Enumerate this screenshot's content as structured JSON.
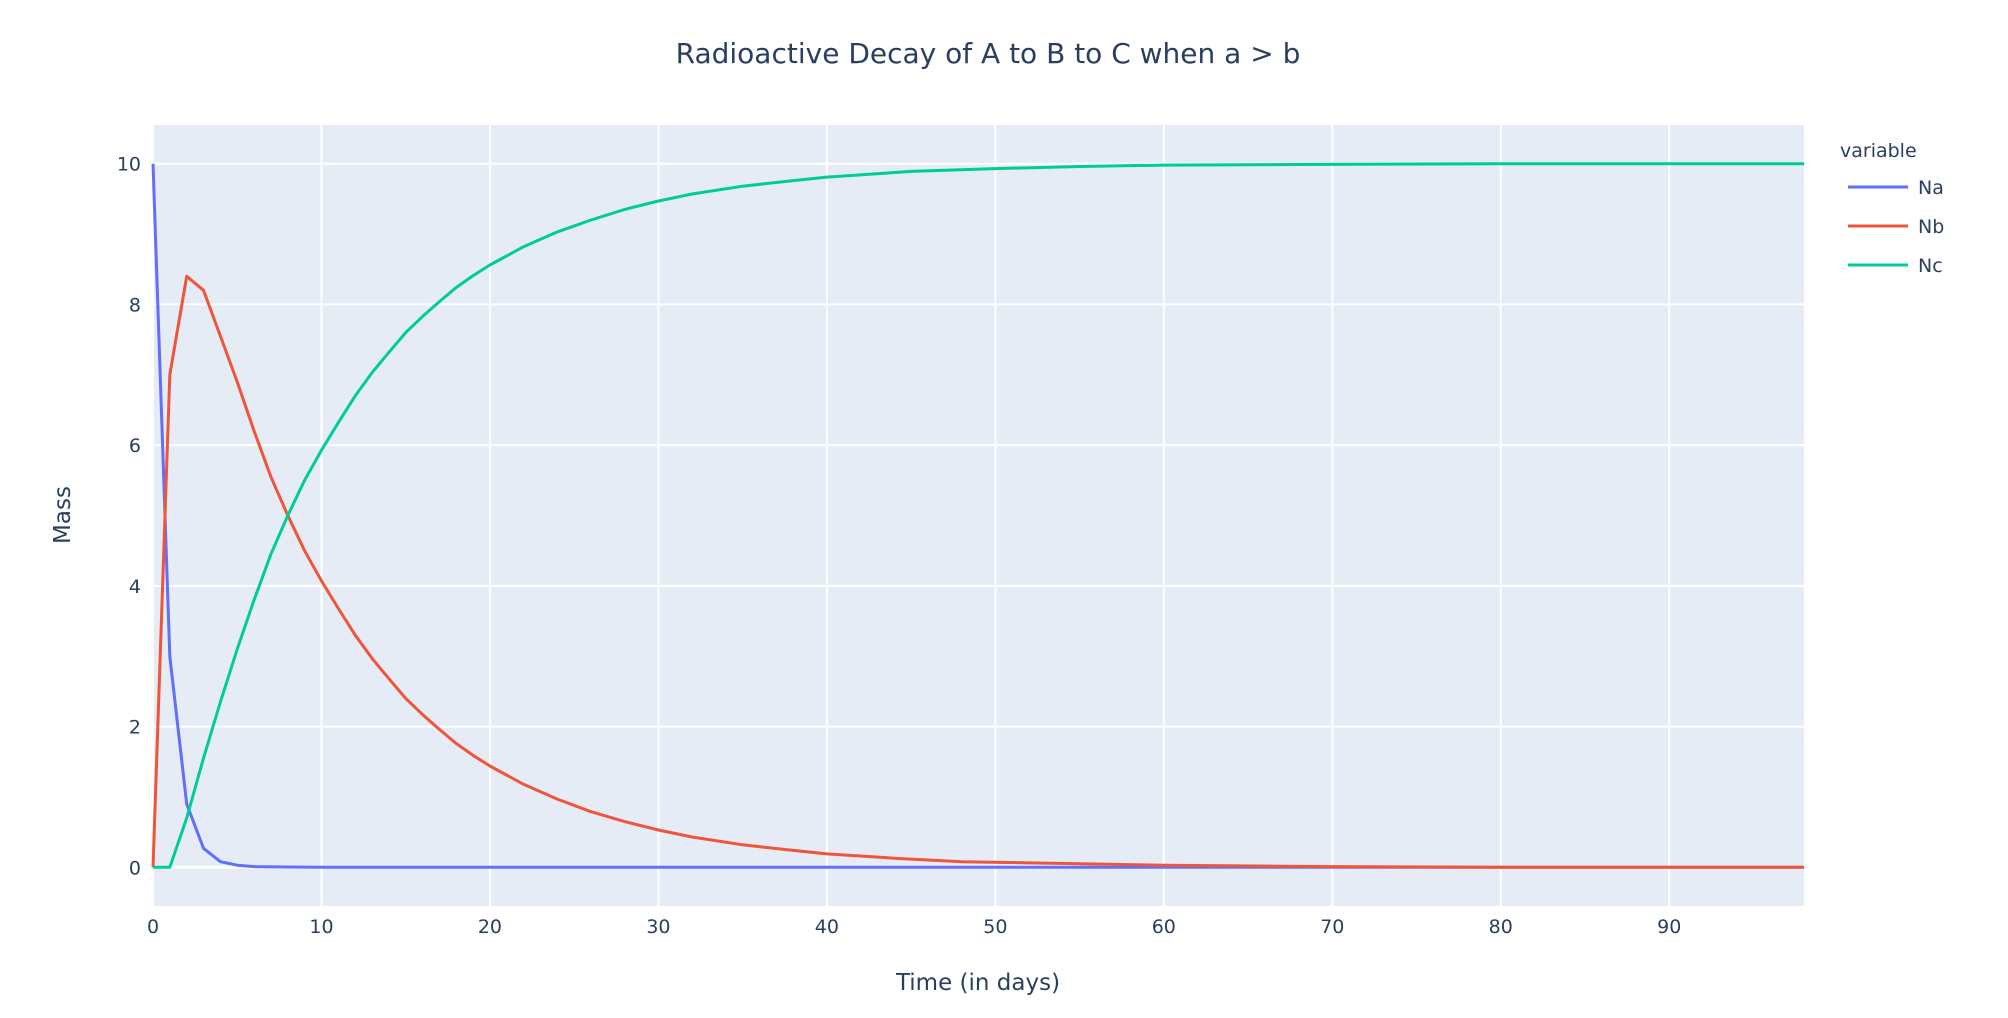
{
  "chart_data": {
    "type": "line",
    "title": "Radioactive Decay of A to B to C when a > b",
    "xlabel": "Time (in days)",
    "ylabel": "Mass",
    "xlim": [
      0,
      98
    ],
    "ylim": [
      -0.55,
      10.55
    ],
    "x_ticks": [
      0,
      10,
      20,
      30,
      40,
      50,
      60,
      70,
      80,
      90
    ],
    "y_ticks": [
      0,
      2,
      4,
      6,
      8,
      10
    ],
    "grid": true,
    "legend": {
      "title": "variable",
      "placement": "top-right"
    },
    "plot_bg": "#e5ecf6",
    "series": [
      {
        "name": "Na",
        "color": "#636efa",
        "x": [
          0,
          1,
          2,
          3,
          4,
          5,
          6,
          8,
          10,
          15,
          20,
          30,
          40,
          50,
          60,
          70,
          80,
          90,
          98
        ],
        "y": [
          10,
          3.0,
          0.9,
          0.27,
          0.08,
          0.03,
          0.01,
          0.005,
          0.0,
          0.0,
          0.0,
          0.0,
          0.0,
          0.0,
          0.0,
          0.0,
          0.0,
          0.0,
          0.0
        ]
      },
      {
        "name": "Nb",
        "color": "#ef553b",
        "x": [
          0,
          1,
          2,
          3,
          4,
          5,
          6,
          7,
          8,
          9,
          10,
          11,
          12,
          13,
          14,
          15,
          16,
          17,
          18,
          19,
          20,
          22,
          24,
          26,
          28,
          30,
          32,
          35,
          38,
          40,
          44,
          48,
          55,
          60,
          70,
          80,
          90,
          98
        ],
        "y": [
          0,
          7.0,
          8.4,
          8.2,
          7.55,
          6.9,
          6.2,
          5.55,
          5.0,
          4.5,
          4.07,
          3.68,
          3.3,
          2.97,
          2.68,
          2.4,
          2.17,
          1.96,
          1.76,
          1.59,
          1.44,
          1.18,
          0.97,
          0.79,
          0.65,
          0.53,
          0.43,
          0.32,
          0.24,
          0.19,
          0.13,
          0.08,
          0.05,
          0.03,
          0.01,
          0.0,
          0.0,
          0.0
        ]
      },
      {
        "name": "Nc",
        "color": "#00cc96",
        "x": [
          0,
          1,
          2,
          3,
          4,
          5,
          6,
          7,
          8,
          9,
          10,
          11,
          12,
          13,
          14,
          15,
          16,
          17,
          18,
          19,
          20,
          22,
          24,
          26,
          28,
          30,
          32,
          35,
          38,
          40,
          45,
          50,
          55,
          60,
          70,
          80,
          90,
          98
        ],
        "y": [
          0,
          0.0,
          0.7,
          1.55,
          2.35,
          3.1,
          3.8,
          4.45,
          5.0,
          5.5,
          5.93,
          6.32,
          6.7,
          7.03,
          7.32,
          7.6,
          7.83,
          8.04,
          8.24,
          8.41,
          8.56,
          8.82,
          9.03,
          9.2,
          9.35,
          9.47,
          9.57,
          9.68,
          9.76,
          9.81,
          9.89,
          9.93,
          9.96,
          9.98,
          9.99,
          10.0,
          10.0,
          10.0
        ]
      }
    ]
  }
}
